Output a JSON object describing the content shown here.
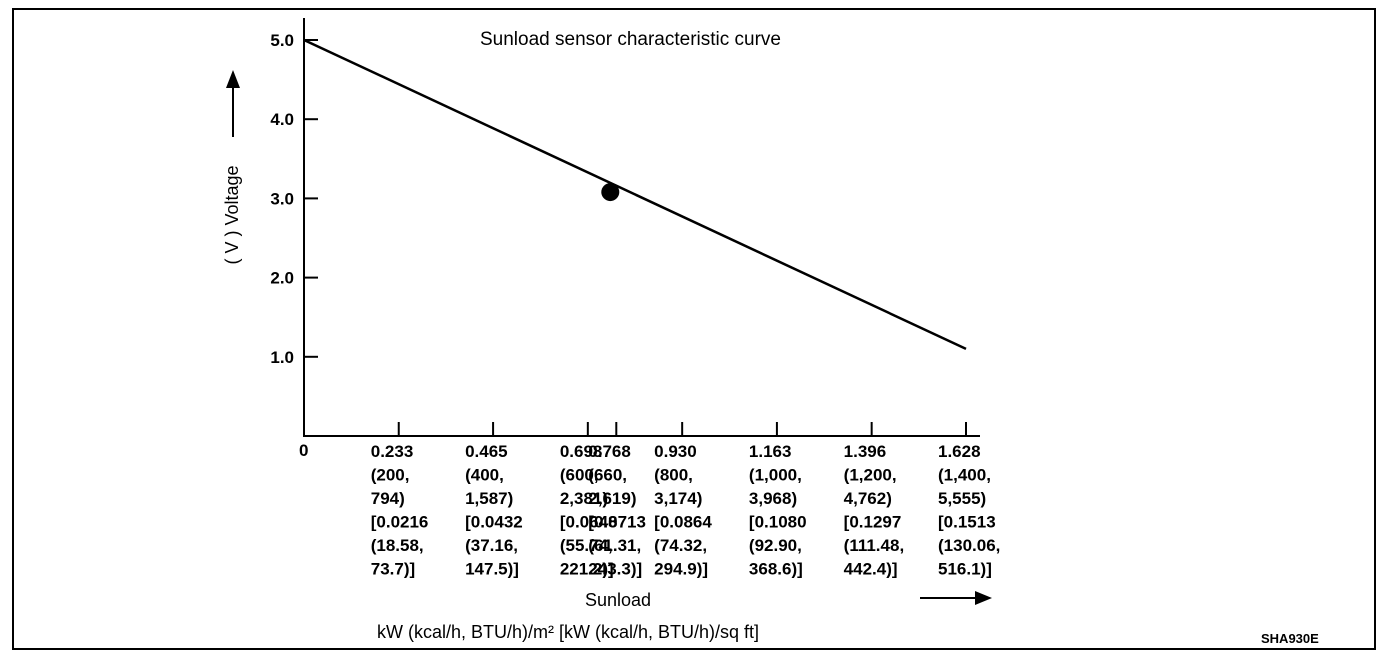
{
  "chart_data": {
    "type": "line",
    "title": "Sunload sensor characteristic curve",
    "ylabel": "( V ) Voltage",
    "xlabel": "Sunload",
    "units": "kW (kcal/h, BTU/h)/m² [kW (kcal/h, BTU/h)/sq ft]",
    "figure_code": "SHA930E",
    "ylim": [
      0,
      5.5
    ],
    "xlim": [
      0,
      1.628
    ],
    "y_ticks": [
      "5.0",
      "4.0",
      "3.0",
      "2.0",
      "1.0"
    ],
    "x_origin_label": "0",
    "x_ticks": [
      {
        "value": 0.233,
        "lines": [
          "0.233",
          "(200,",
          "794)",
          "[0.0216",
          "(18.58,",
          "73.7)]"
        ]
      },
      {
        "value": 0.465,
        "lines": [
          "0.465",
          "(400,",
          "1,587)",
          "[0.0432",
          "(37.16,",
          "147.5)]"
        ]
      },
      {
        "value": 0.698,
        "lines": [
          "0.698",
          "(600,",
          "2,381)",
          "[0.0648",
          "(55.74,",
          "221.2)]"
        ]
      },
      {
        "value": 0.768,
        "lines": [
          "0.768",
          "(660,",
          "2,619)",
          "[0.0713",
          "(61.31,",
          "243.3)]"
        ]
      },
      {
        "value": 0.93,
        "lines": [
          "0.930",
          "(800,",
          "3,174)",
          "[0.0864",
          "(74.32,",
          "294.9)]"
        ]
      },
      {
        "value": 1.163,
        "lines": [
          "1.163",
          "(1,000,",
          "3,968)",
          "[0.1080",
          "(92.90,",
          "368.6)]"
        ]
      },
      {
        "value": 1.396,
        "lines": [
          "1.396",
          "(1,200,",
          "4,762)",
          "[0.1297",
          "(111.48,",
          "442.4)]"
        ]
      },
      {
        "value": 1.628,
        "lines": [
          "1.628",
          "(1,400,",
          "5,555)",
          "[0.1513",
          "(130.06,",
          "516.1)]"
        ]
      }
    ],
    "series": [
      {
        "points": [
          [
            0,
            5.0
          ],
          [
            1.628,
            1.1
          ]
        ]
      }
    ],
    "marker": {
      "x": 0.768,
      "y": 3.08
    }
  }
}
